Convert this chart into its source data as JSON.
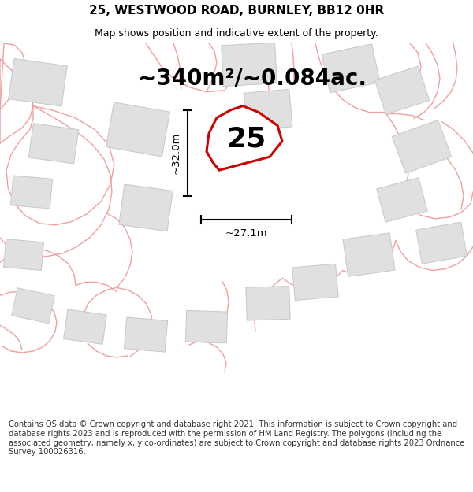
{
  "title": "25, WESTWOOD ROAD, BURNLEY, BB12 0HR",
  "subtitle": "Map shows position and indicative extent of the property.",
  "area_label": "~340m²/~0.084ac.",
  "property_number": "25",
  "dim_height": "~32.0m",
  "dim_width": "~27.1m",
  "footer_text": "Contains OS data © Crown copyright and database right 2021. This information is subject to Crown copyright and database rights 2023 and is reproduced with the permission of HM Land Registry. The polygons (including the associated geometry, namely x, y co-ordinates) are subject to Crown copyright and database rights 2023 Ordnance Survey 100026316.",
  "bg_color": "#ffffff",
  "map_bg": "#ffffff",
  "property_fill": "#ffffff",
  "property_edge": "#cc0000",
  "outline_color": "#f0a0a0",
  "building_fill": "#e0e0e0",
  "building_edge": "#c8c8c8",
  "title_fontsize": 11,
  "subtitle_fontsize": 9,
  "area_fontsize": 20,
  "number_fontsize": 26,
  "dim_fontsize": 9.5,
  "footer_fontsize": 7.2,
  "footer_color": "#333333"
}
